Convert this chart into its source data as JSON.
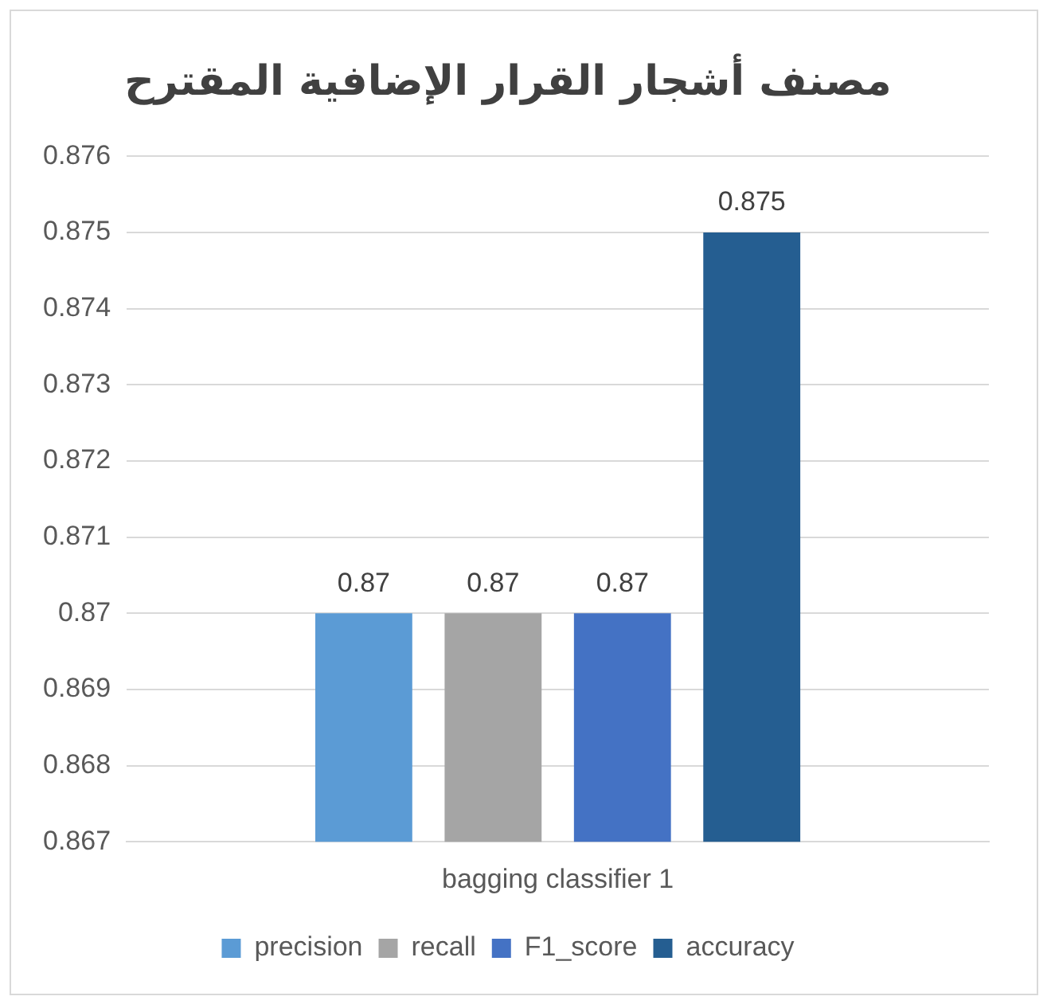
{
  "chart_data": {
    "type": "bar",
    "title": "مصنف أشجار القرار الإضافية المقترح",
    "categories": [
      "bagging classifier 1"
    ],
    "series": [
      {
        "name": "precision",
        "color": "#5b9bd5",
        "values": [
          0.87
        ]
      },
      {
        "name": "recall",
        "color": "#a5a5a5",
        "values": [
          0.87
        ]
      },
      {
        "name": "F1_score",
        "color": "#4472c4",
        "values": [
          0.87
        ]
      },
      {
        "name": "accuracy",
        "color": "#255e91",
        "values": [
          0.875
        ]
      }
    ],
    "ylim": [
      0.867,
      0.876
    ],
    "yticks": [
      0.867,
      0.868,
      0.869,
      0.87,
      0.871,
      0.872,
      0.873,
      0.874,
      0.875,
      0.876
    ],
    "grid": "y",
    "legend": "bottom",
    "data_labels": true
  }
}
